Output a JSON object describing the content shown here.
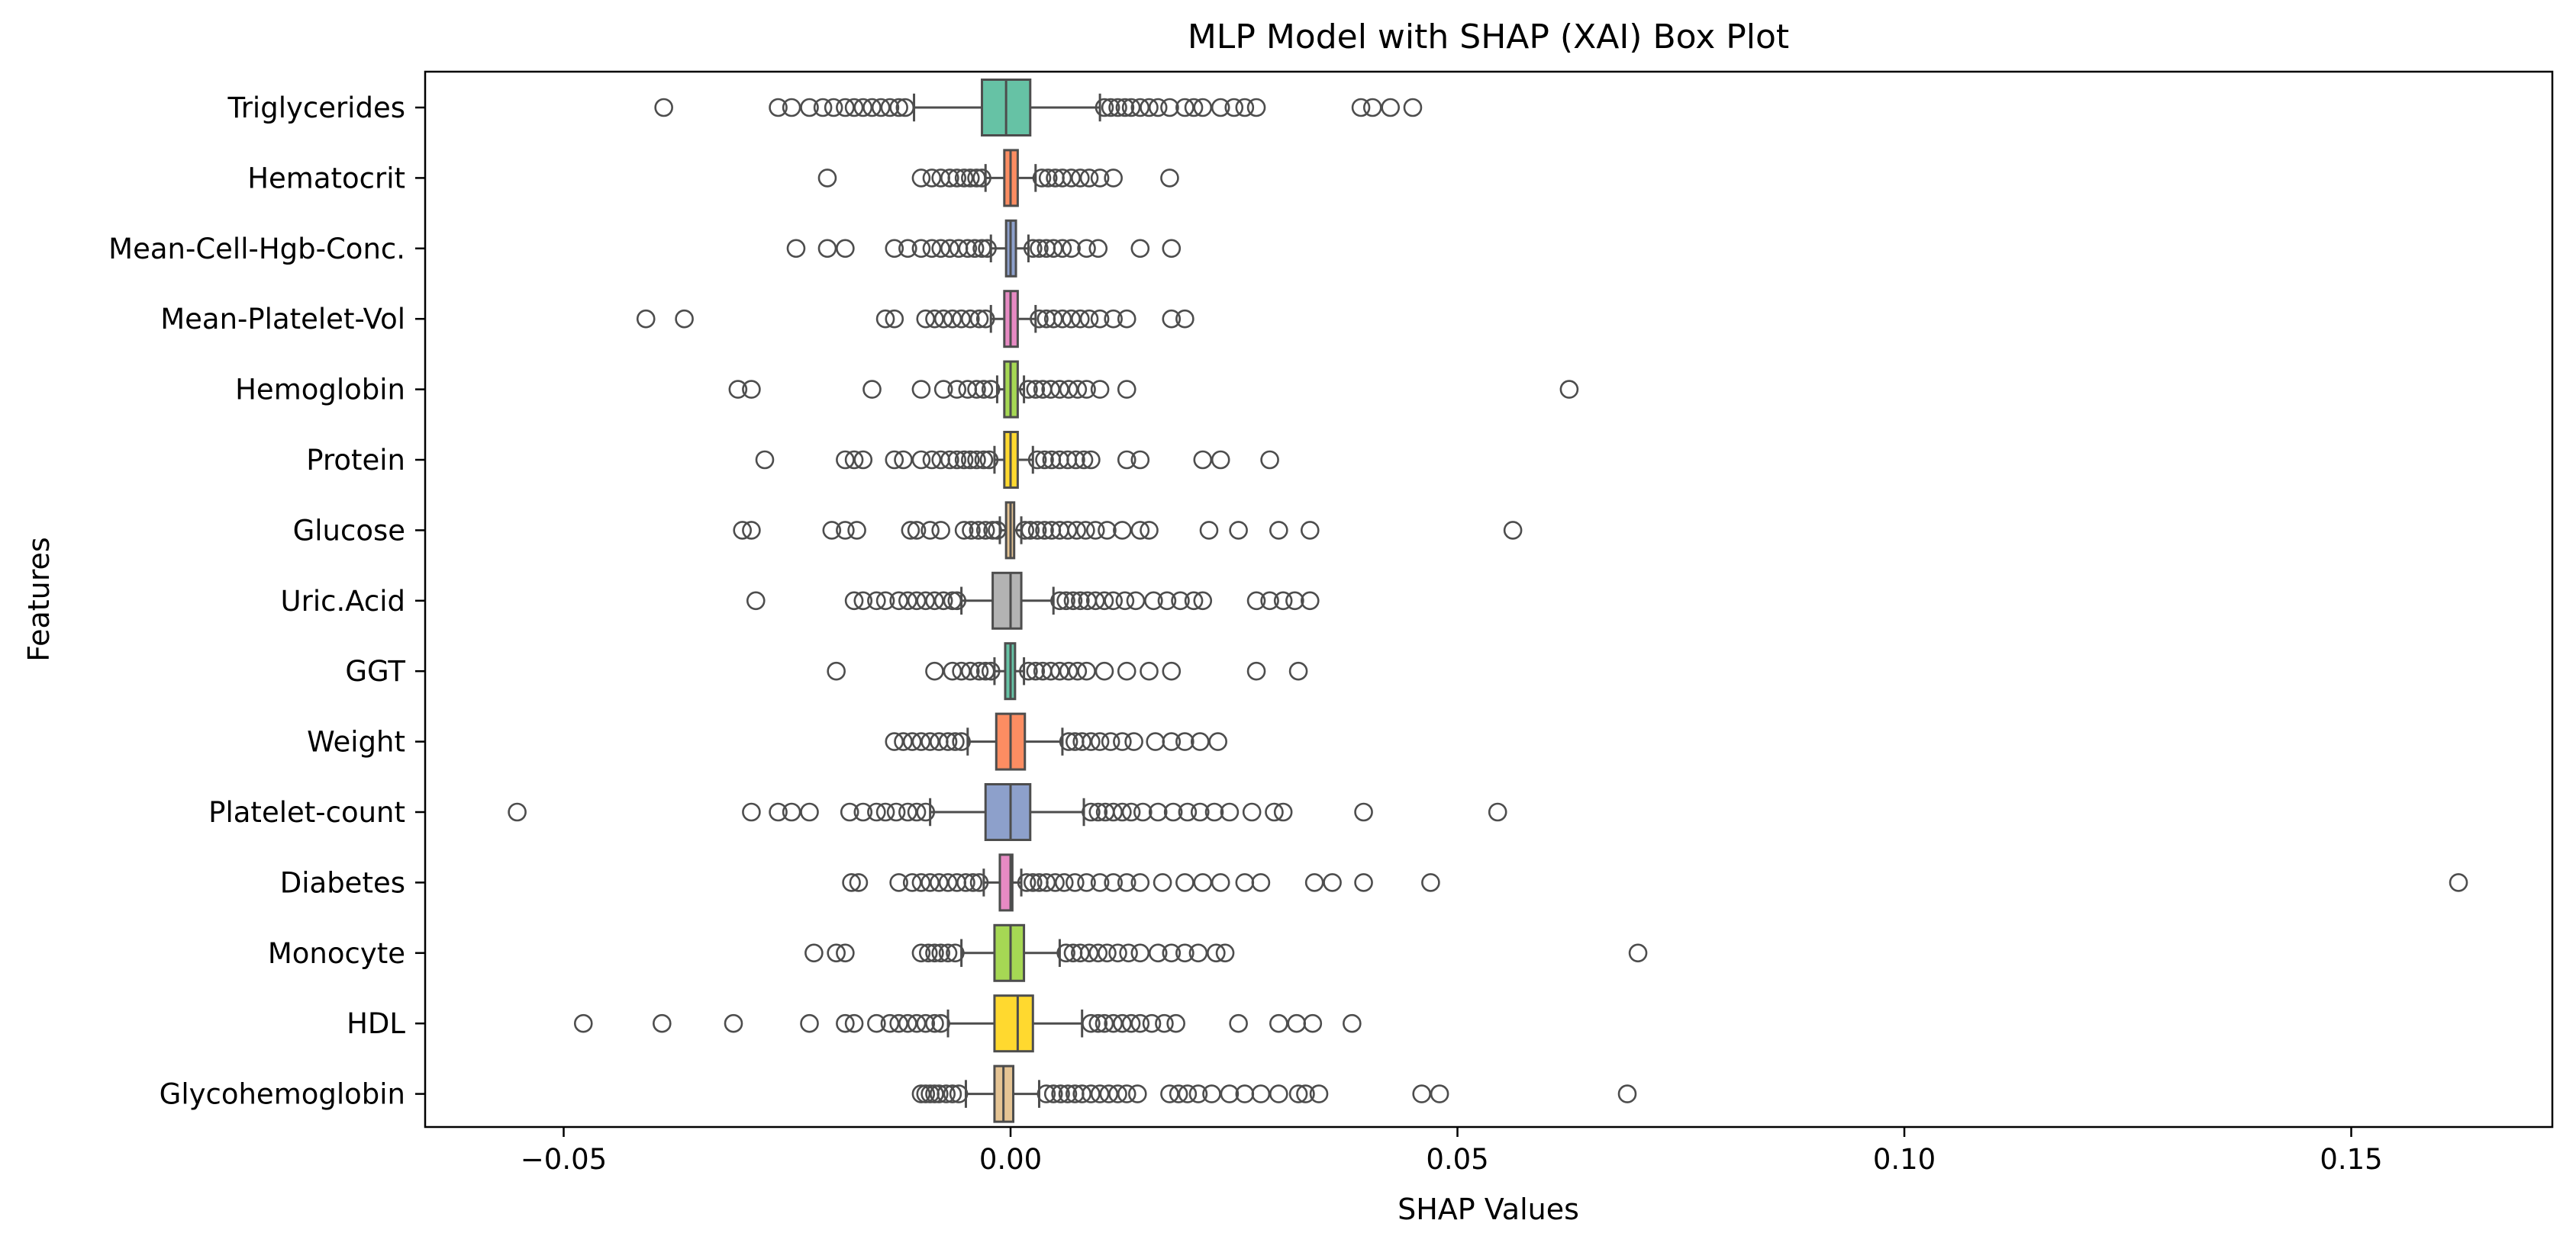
{
  "chart_data": {
    "type": "box",
    "orientation": "horizontal",
    "title": "MLP Model with SHAP (XAI) Box Plot",
    "xlabel": "SHAP Values",
    "ylabel": "Features",
    "xlim": [
      -0.0655,
      0.1725
    ],
    "xticks": [
      -0.05,
      0.0,
      0.05,
      0.1,
      0.15
    ],
    "xtick_labels": [
      "−0.05",
      "0.00",
      "0.05",
      "0.10",
      "0.15"
    ],
    "grid": false,
    "legend": "none",
    "colors": {
      "palette": [
        "#66c2a5",
        "#fc8d62",
        "#8da0cb",
        "#e78ac3",
        "#a6d854",
        "#ffd92f",
        "#e5c494",
        "#b3b3b3"
      ],
      "edge": "#4d4d4d"
    },
    "categories": [
      "Triglycerides",
      "Hematocrit",
      "Mean-Cell-Hgb-Conc.",
      "Mean-Platelet-Vol",
      "Hemoglobin",
      "Protein",
      "Glucose",
      "Uric.Acid",
      "GGT",
      "Weight",
      "Platelet-count",
      "Diabetes",
      "Monocyte",
      "HDL",
      "Glycohemoglobin"
    ],
    "boxes": [
      {
        "name": "Triglycerides",
        "color": "#66c2a5",
        "q1": -0.0032,
        "median": -0.0005,
        "q3": 0.0022,
        "whisker_low": -0.0108,
        "whisker_high": 0.01,
        "outliers": [
          -0.0388,
          -0.026,
          -0.0245,
          -0.0225,
          -0.021,
          -0.0198,
          -0.0185,
          -0.0175,
          -0.0165,
          -0.0155,
          -0.0145,
          -0.0135,
          -0.0125,
          -0.0118,
          0.0105,
          0.0112,
          0.012,
          0.0128,
          0.0135,
          0.0145,
          0.0155,
          0.0165,
          0.0178,
          0.0195,
          0.0205,
          0.0215,
          0.0235,
          0.025,
          0.0262,
          0.0275,
          0.0392,
          0.0405,
          0.0425,
          0.045
        ]
      },
      {
        "name": "Hematocrit",
        "color": "#fc8d62",
        "q1": -0.0007,
        "median": 0.0,
        "q3": 0.0008,
        "whisker_low": -0.0028,
        "whisker_high": 0.0028,
        "outliers": [
          -0.0205,
          -0.01,
          -0.0088,
          -0.0078,
          -0.0068,
          -0.006,
          -0.0052,
          -0.0045,
          -0.0038,
          -0.0032,
          0.0035,
          0.0042,
          0.005,
          0.0058,
          0.0068,
          0.0078,
          0.0088,
          0.01,
          0.0115,
          0.0178
        ]
      },
      {
        "name": "Mean-Cell-Hgb-Conc.",
        "color": "#8da0cb",
        "q1": -0.0005,
        "median": 0.0,
        "q3": 0.0006,
        "whisker_low": -0.0022,
        "whisker_high": 0.002,
        "outliers": [
          -0.024,
          -0.0205,
          -0.0185,
          -0.013,
          -0.0115,
          -0.01,
          -0.0088,
          -0.0078,
          -0.0068,
          -0.0058,
          -0.0048,
          -0.004,
          -0.0032,
          -0.0026,
          0.0025,
          0.0032,
          0.004,
          0.0048,
          0.0058,
          0.0068,
          0.0085,
          0.0098,
          0.0145,
          0.018
        ]
      },
      {
        "name": "Mean-Platelet-Vol",
        "color": "#e78ac3",
        "q1": -0.0007,
        "median": 0.0,
        "q3": 0.0008,
        "whisker_low": -0.0022,
        "whisker_high": 0.0028,
        "outliers": [
          -0.0408,
          -0.0365,
          -0.014,
          -0.013,
          -0.0095,
          -0.0085,
          -0.0075,
          -0.0065,
          -0.0055,
          -0.0045,
          -0.0035,
          -0.0028,
          0.0032,
          0.004,
          0.0048,
          0.0058,
          0.0068,
          0.0078,
          0.0088,
          0.01,
          0.0115,
          0.013,
          0.018,
          0.0195
        ]
      },
      {
        "name": "Hemoglobin",
        "color": "#a6d854",
        "q1": -0.0007,
        "median": 0.0,
        "q3": 0.0008,
        "whisker_low": -0.0015,
        "whisker_high": 0.0015,
        "outliers": [
          -0.0305,
          -0.029,
          -0.0155,
          -0.01,
          -0.0075,
          -0.006,
          -0.0048,
          -0.0038,
          -0.003,
          -0.0022,
          0.002,
          0.0028,
          0.0036,
          0.0045,
          0.0055,
          0.0065,
          0.0075,
          0.0085,
          0.01,
          0.013,
          0.0625
        ]
      },
      {
        "name": "Protein",
        "color": "#ffd92f",
        "q1": -0.0007,
        "median": 0.0,
        "q3": 0.0008,
        "whisker_low": -0.0018,
        "whisker_high": 0.0025,
        "outliers": [
          -0.0275,
          -0.0185,
          -0.0175,
          -0.0165,
          -0.013,
          -0.012,
          -0.01,
          -0.0088,
          -0.0078,
          -0.0068,
          -0.006,
          -0.0052,
          -0.0045,
          -0.0038,
          -0.003,
          -0.0024,
          0.003,
          0.0038,
          0.0046,
          0.0055,
          0.0064,
          0.0073,
          0.0082,
          0.009,
          0.013,
          0.0145,
          0.0215,
          0.0235,
          0.029
        ]
      },
      {
        "name": "Glucose",
        "color": "#e5c494",
        "q1": -0.0005,
        "median": 0.0,
        "q3": 0.0004,
        "whisker_low": -0.0012,
        "whisker_high": 0.0012,
        "outliers": [
          -0.03,
          -0.029,
          -0.02,
          -0.0185,
          -0.0172,
          -0.0112,
          -0.0105,
          -0.009,
          -0.0078,
          -0.0052,
          -0.0044,
          -0.0036,
          -0.0028,
          -0.002,
          -0.0015,
          0.0016,
          0.0022,
          0.003,
          0.0038,
          0.0046,
          0.0055,
          0.0064,
          0.0074,
          0.0084,
          0.0095,
          0.0108,
          0.0125,
          0.0145,
          0.0155,
          0.0222,
          0.0255,
          0.03,
          0.0335,
          0.0562
        ]
      },
      {
        "name": "Uric.Acid",
        "color": "#b3b3b3",
        "q1": -0.002,
        "median": 0.0,
        "q3": 0.0012,
        "whisker_low": -0.0055,
        "whisker_high": 0.0048,
        "outliers": [
          -0.0285,
          -0.0175,
          -0.0165,
          -0.015,
          -0.014,
          -0.0125,
          -0.0115,
          -0.0105,
          -0.0095,
          -0.0085,
          -0.0075,
          -0.0065,
          -0.006,
          0.0055,
          0.0062,
          0.007,
          0.0078,
          0.0086,
          0.0095,
          0.0105,
          0.0115,
          0.0128,
          0.014,
          0.016,
          0.0175,
          0.019,
          0.0205,
          0.0215,
          0.0275,
          0.029,
          0.0305,
          0.0318,
          0.0335
        ]
      },
      {
        "name": "GGT",
        "color": "#66c2a5",
        "q1": -0.0006,
        "median": 0.0,
        "q3": 0.0005,
        "whisker_low": -0.0018,
        "whisker_high": 0.0015,
        "outliers": [
          -0.0195,
          -0.0085,
          -0.0065,
          -0.0055,
          -0.0045,
          -0.0035,
          -0.0028,
          -0.0022,
          0.002,
          0.0028,
          0.0036,
          0.0045,
          0.0055,
          0.0065,
          0.0075,
          0.0085,
          0.0105,
          0.013,
          0.0155,
          0.018,
          0.0275,
          0.0322
        ]
      },
      {
        "name": "Weight",
        "color": "#fc8d62",
        "q1": -0.0016,
        "median": 0.0,
        "q3": 0.0016,
        "whisker_low": -0.0048,
        "whisker_high": 0.0058,
        "outliers": [
          -0.013,
          -0.012,
          -0.011,
          -0.01,
          -0.009,
          -0.008,
          -0.007,
          -0.0062,
          -0.0055,
          0.0065,
          0.0072,
          0.008,
          0.009,
          0.01,
          0.0112,
          0.0125,
          0.0138,
          0.0162,
          0.018,
          0.0195,
          0.0212,
          0.0232
        ]
      },
      {
        "name": "Platelet-count",
        "color": "#8da0cb",
        "q1": -0.0028,
        "median": 0.0,
        "q3": 0.0022,
        "whisker_low": -0.009,
        "whisker_high": 0.0082,
        "outliers": [
          -0.0552,
          -0.029,
          -0.026,
          -0.0245,
          -0.0225,
          -0.018,
          -0.0165,
          -0.015,
          -0.014,
          -0.0128,
          -0.0115,
          -0.0105,
          -0.0095,
          0.009,
          0.0098,
          0.0106,
          0.0115,
          0.0125,
          0.0135,
          0.0148,
          0.0165,
          0.0182,
          0.0198,
          0.0212,
          0.0228,
          0.0245,
          0.027,
          0.0295,
          0.0305,
          0.0395,
          0.0545
        ]
      },
      {
        "name": "Diabetes",
        "color": "#e78ac3",
        "q1": -0.0012,
        "median": 0.0,
        "q3": 0.0002,
        "whisker_low": -0.003,
        "whisker_high": 0.0012,
        "outliers": [
          -0.0178,
          -0.017,
          -0.0125,
          -0.011,
          -0.01,
          -0.009,
          -0.008,
          -0.007,
          -0.006,
          -0.005,
          -0.0042,
          -0.0035,
          0.0018,
          0.0025,
          0.0032,
          0.004,
          0.005,
          0.006,
          0.0072,
          0.0085,
          0.01,
          0.0115,
          0.013,
          0.0145,
          0.017,
          0.0195,
          0.0215,
          0.0235,
          0.0262,
          0.028,
          0.034,
          0.036,
          0.0395,
          0.047,
          0.162
        ]
      },
      {
        "name": "Monocyte",
        "color": "#a6d854",
        "q1": -0.0018,
        "median": 0.0,
        "q3": 0.0015,
        "whisker_low": -0.0055,
        "whisker_high": 0.0055,
        "outliers": [
          -0.022,
          -0.0195,
          -0.0185,
          -0.01,
          -0.0092,
          -0.0085,
          -0.0078,
          -0.007,
          -0.0062,
          0.0062,
          0.007,
          0.0078,
          0.0088,
          0.0098,
          0.0108,
          0.012,
          0.0132,
          0.0145,
          0.0165,
          0.018,
          0.0195,
          0.021,
          0.023,
          0.024,
          0.0702
        ]
      },
      {
        "name": "HDL",
        "color": "#ffd92f",
        "q1": -0.0018,
        "median": 0.0008,
        "q3": 0.0025,
        "whisker_low": -0.007,
        "whisker_high": 0.008,
        "outliers": [
          -0.0478,
          -0.039,
          -0.031,
          -0.0225,
          -0.0185,
          -0.0175,
          -0.015,
          -0.0135,
          -0.0125,
          -0.0115,
          -0.0105,
          -0.0095,
          -0.0085,
          -0.0078,
          0.009,
          0.0098,
          0.0105,
          0.0115,
          0.0125,
          0.0135,
          0.0145,
          0.0158,
          0.0172,
          0.0185,
          0.0255,
          0.03,
          0.032,
          0.0338,
          0.0382
        ]
      },
      {
        "name": "Glycohemoglobin",
        "color": "#e5c494",
        "q1": -0.0018,
        "median": -0.0008,
        "q3": 0.0003,
        "whisker_low": -0.005,
        "whisker_high": 0.0032,
        "outliers": [
          -0.01,
          -0.0095,
          -0.009,
          -0.0085,
          -0.008,
          -0.0072,
          -0.0065,
          -0.0058,
          0.004,
          0.0048,
          0.0056,
          0.0064,
          0.0072,
          0.008,
          0.009,
          0.01,
          0.011,
          0.012,
          0.013,
          0.0142,
          0.0178,
          0.0188,
          0.0198,
          0.021,
          0.0225,
          0.0245,
          0.0262,
          0.028,
          0.03,
          0.0322,
          0.033,
          0.0345,
          0.046,
          0.048,
          0.069
        ]
      }
    ]
  }
}
